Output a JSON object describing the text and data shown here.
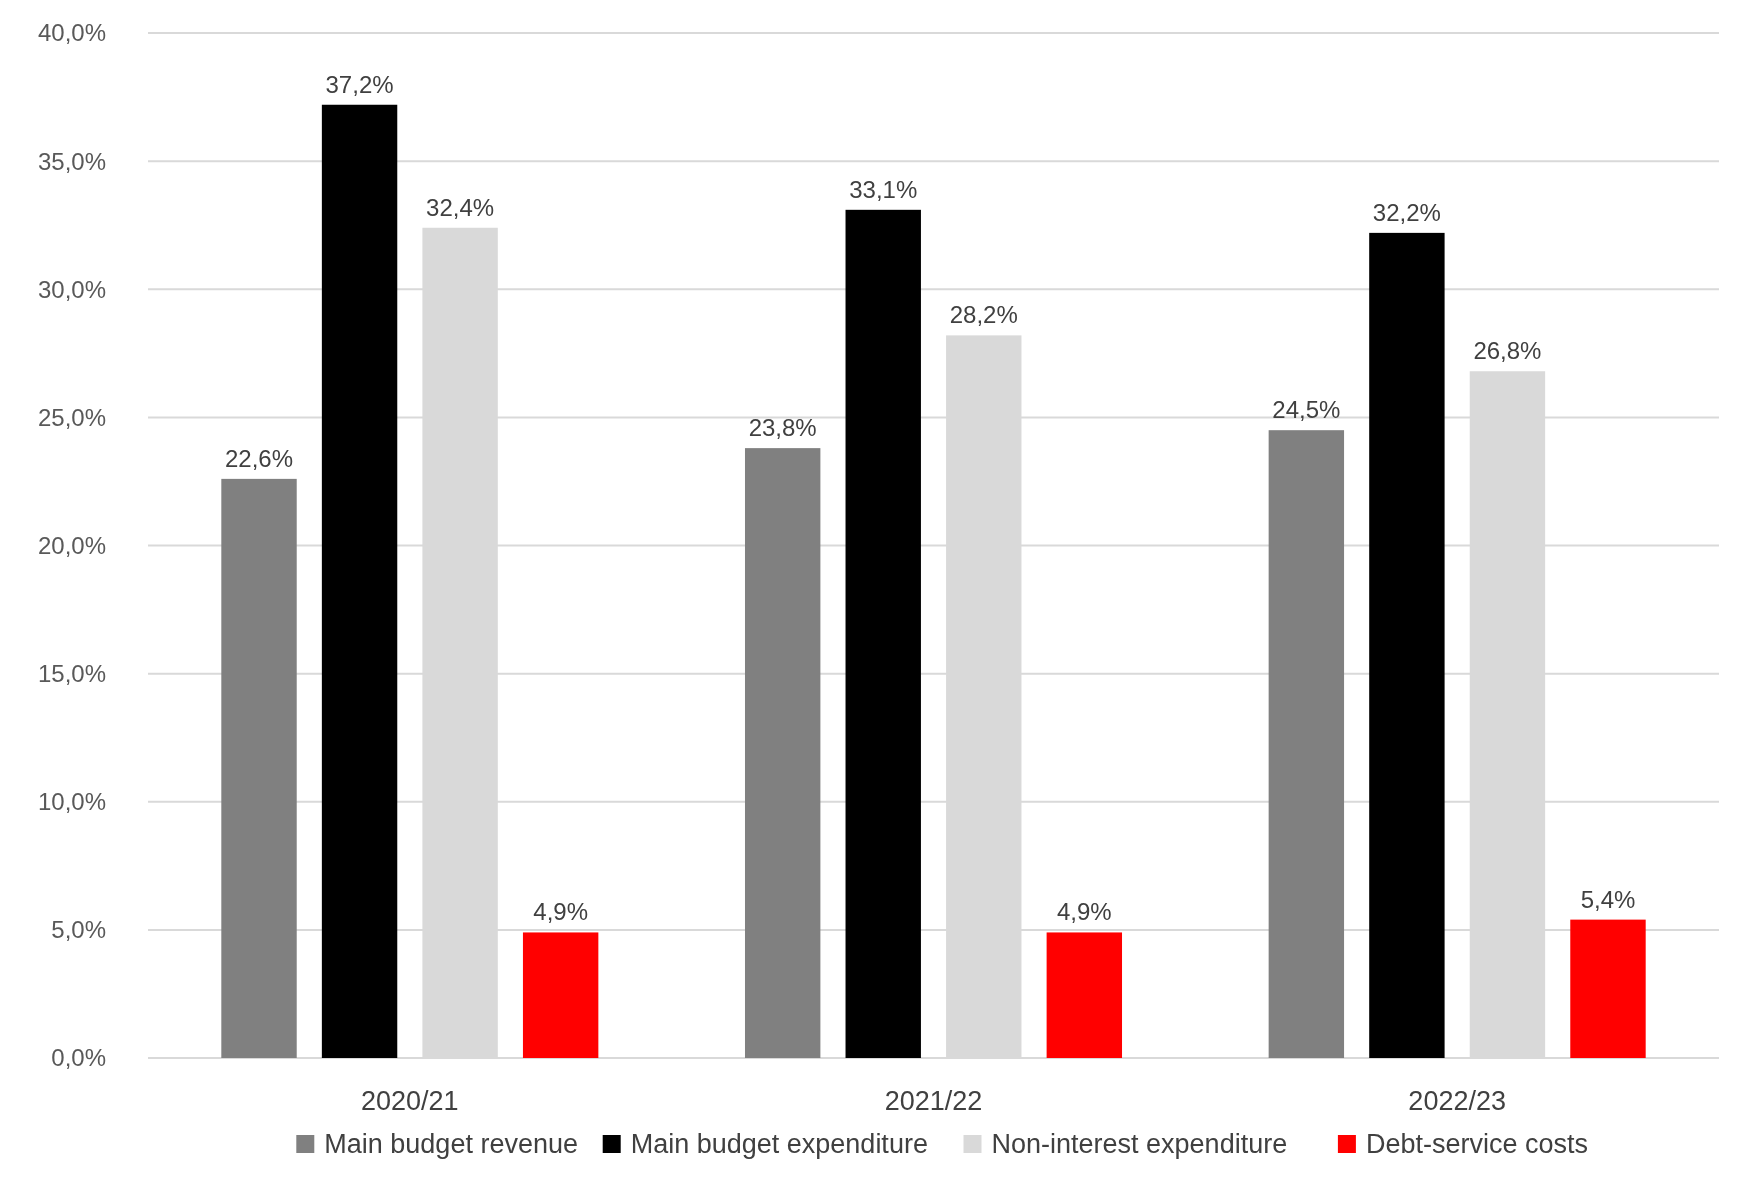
{
  "chart_data": {
    "type": "bar",
    "categories": [
      "2020/21",
      "2021/22",
      "2022/23"
    ],
    "series": [
      {
        "name": "Main budget revenue",
        "color": "#808080",
        "values": [
          22.6,
          23.8,
          24.5
        ],
        "value_labels": [
          "22,6%",
          "23,8%",
          "24,5%"
        ]
      },
      {
        "name": "Main budget expenditure",
        "color": "#000000",
        "values": [
          37.2,
          33.1,
          32.2
        ],
        "value_labels": [
          "37,2%",
          "33,1%",
          "32,2%"
        ]
      },
      {
        "name": "Non-interest expenditure",
        "color": "#d9d9d9",
        "values": [
          32.4,
          28.2,
          26.8
        ],
        "value_labels": [
          "32,4%",
          "28,2%",
          "26,8%"
        ]
      },
      {
        "name": "Debt-service costs",
        "color": "#ff0000",
        "values": [
          4.9,
          4.9,
          5.4
        ],
        "value_labels": [
          "4,9%",
          "4,9%",
          "5,4%"
        ]
      }
    ],
    "ylim": [
      0,
      40
    ],
    "yticks": [
      {
        "value": 0,
        "label": "0,0%"
      },
      {
        "value": 5,
        "label": "5,0%"
      },
      {
        "value": 10,
        "label": "10,0%"
      },
      {
        "value": 15,
        "label": "15,0%"
      },
      {
        "value": 20,
        "label": "20,0%"
      },
      {
        "value": 25,
        "label": "25,0%"
      },
      {
        "value": 30,
        "label": "30,0%"
      },
      {
        "value": 35,
        "label": "35,0%"
      },
      {
        "value": 40,
        "label": "40,0%"
      }
    ],
    "grid": "y",
    "legend": "bottom"
  }
}
